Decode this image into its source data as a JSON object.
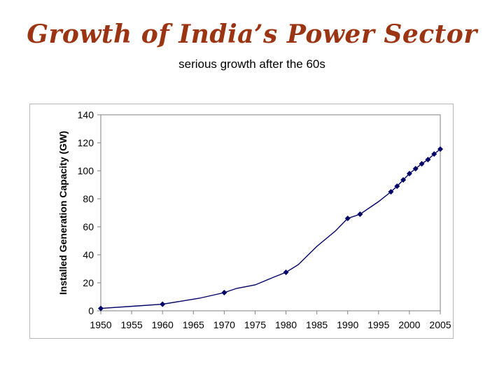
{
  "title": "Growth of India’s Power Sector",
  "subtitle": "serious growth after the 60s",
  "chart_data": {
    "type": "line",
    "title": "",
    "xlabel": "",
    "ylabel": "Installed Generation Capacity (GW)",
    "xlim": [
      1950,
      2005
    ],
    "ylim": [
      0,
      140
    ],
    "x_ticks": [
      1950,
      1955,
      1960,
      1965,
      1970,
      1975,
      1980,
      1985,
      1990,
      1995,
      2000,
      2005
    ],
    "y_ticks": [
      0,
      20,
      40,
      60,
      80,
      100,
      120,
      140
    ],
    "grid": false,
    "line_color": "#000066",
    "marker_color": "#000066",
    "marker": "diamond",
    "series": [
      {
        "x": [
          1950,
          1956,
          1960,
          1966,
          1970,
          1972,
          1975,
          1978,
          1980,
          1982,
          1985,
          1988,
          1990,
          1992,
          1995,
          1997,
          1998,
          1999,
          2000,
          2001,
          2002,
          2003,
          2004,
          2005
        ],
        "y": [
          1.7,
          3.5,
          4.7,
          9.0,
          13.0,
          16.0,
          18.5,
          24.0,
          27.5,
          33.0,
          46.0,
          57.0,
          66.0,
          69.0,
          78.0,
          85.0,
          89.0,
          93.5,
          98.0,
          101.5,
          105.0,
          108.0,
          112.0,
          115.5
        ],
        "markers": [
          true,
          false,
          true,
          false,
          true,
          false,
          false,
          false,
          true,
          false,
          false,
          false,
          true,
          true,
          false,
          true,
          true,
          true,
          true,
          true,
          true,
          true,
          true,
          true
        ]
      }
    ]
  }
}
